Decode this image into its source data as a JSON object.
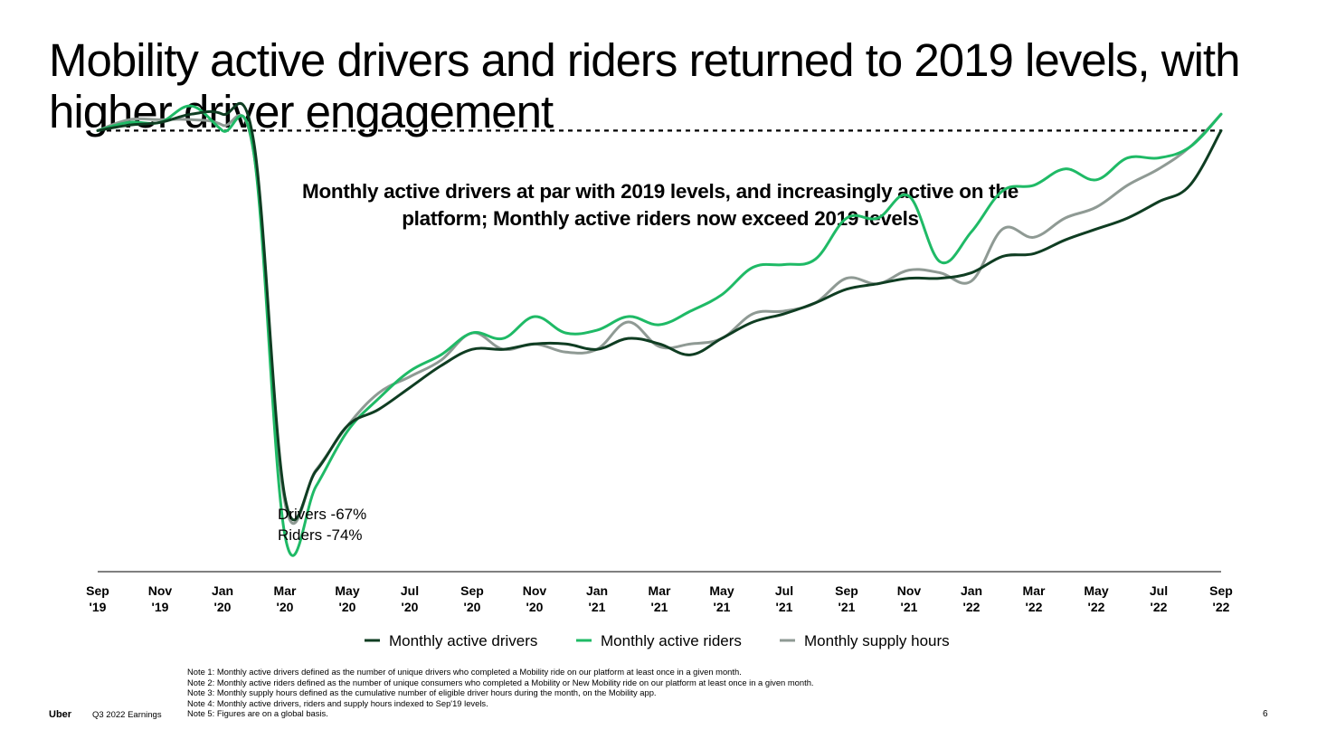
{
  "slide": {
    "title": "Mobility active drivers and riders returned to 2019 levels, with higher driver engagement",
    "subtitle_line1": "Monthly active drivers at par with 2019 levels, and increasingly active on the",
    "subtitle_line2": "platform; Monthly active riders now exceed 2019 levels",
    "brand": "Uber",
    "footer_label": "Q3 2022 Earnings",
    "page_number": "6"
  },
  "notes": [
    "Note 1: Monthly active drivers defined as the number of unique drivers who completed a Mobility ride on our platform at least once in a given month.",
    "Note 2: Monthly active riders defined as the number of unique consumers who completed a Mobility or New Mobility ride on our platform at least once in a given month.",
    "Note 3: Monthly supply hours defined as the cumulative number of eligible driver hours during the month, on the Mobility app.",
    "Note 4: Monthly active drivers, riders and supply hours indexed to Sep'19 levels.",
    "Note 5: Figures are on a global basis."
  ],
  "colors": {
    "drivers": "#0f3d22",
    "riders": "#1fba66",
    "supply": "#8f9a94",
    "baseline": "#000000",
    "axis": "#000000"
  },
  "chart_data": {
    "type": "line",
    "x": [
      "Sep '19",
      "Oct '19",
      "Nov '19",
      "Dec '19",
      "Jan '20",
      "Feb '20",
      "Mar '20",
      "Apr '20",
      "May '20",
      "Jun '20",
      "Jul '20",
      "Aug '20",
      "Sep '20",
      "Oct '20",
      "Nov '20",
      "Dec '20",
      "Jan '21",
      "Feb '21",
      "Mar '21",
      "Apr '21",
      "May '21",
      "Jun '21",
      "Jul '21",
      "Aug '21",
      "Sep '21",
      "Oct '21",
      "Nov '21",
      "Dec '21",
      "Jan '22",
      "Feb '22",
      "Mar '22",
      "Apr '22",
      "May '22",
      "Jun '22",
      "Jul '22",
      "Aug '22",
      "Sep '22"
    ],
    "x_tick_labels": [
      {
        "month": "Sep",
        "year": "'19"
      },
      {
        "month": "Nov",
        "year": "'19"
      },
      {
        "month": "Jan",
        "year": "'20"
      },
      {
        "month": "Mar",
        "year": "'20"
      },
      {
        "month": "May",
        "year": "'20"
      },
      {
        "month": "Jul",
        "year": "'20"
      },
      {
        "month": "Sep",
        "year": "'20"
      },
      {
        "month": "Nov",
        "year": "'20"
      },
      {
        "month": "Jan",
        "year": "'21"
      },
      {
        "month": "Mar",
        "year": "'21"
      },
      {
        "month": "May",
        "year": "'21"
      },
      {
        "month": "Jul",
        "year": "'21"
      },
      {
        "month": "Sep",
        "year": "'21"
      },
      {
        "month": "Nov",
        "year": "'21"
      },
      {
        "month": "Jan",
        "year": "'22"
      },
      {
        "month": "Mar",
        "year": "'22"
      },
      {
        "month": "May",
        "year": "'22"
      },
      {
        "month": "Jul",
        "year": "'22"
      },
      {
        "month": "Sep",
        "year": "'22"
      }
    ],
    "baseline": 100,
    "ylim": [
      22,
      108
    ],
    "grid": false,
    "legend_position": "bottom",
    "series": [
      {
        "name": "Monthly active drivers",
        "color_key": "drivers",
        "values": [
          100,
          101,
          101.5,
          103,
          103,
          98,
          33,
          37.8,
          46,
          49,
          53,
          57,
          60,
          60,
          61,
          61,
          60,
          62,
          61,
          59,
          62,
          65,
          66.5,
          68.5,
          71,
          72,
          73,
          73,
          74,
          77,
          77.5,
          80,
          82,
          84,
          87,
          90,
          100
        ]
      },
      {
        "name": "Monthly active riders",
        "color_key": "riders",
        "values": [
          100,
          101.5,
          101.5,
          104.5,
          100,
          96,
          26,
          35,
          45,
          51,
          56,
          59,
          63,
          62,
          66,
          63,
          63.5,
          66,
          64.5,
          67,
          70,
          75,
          75.5,
          76.5,
          84,
          84,
          88,
          76,
          81.5,
          89,
          90,
          93,
          91,
          95,
          95,
          97,
          103
        ]
      },
      {
        "name": "Monthly supply hours",
        "color_key": "supply",
        "values": [
          100,
          102,
          102,
          102,
          101,
          96,
          32,
          38,
          46,
          52,
          55,
          58,
          63,
          60,
          61,
          59.5,
          60,
          65,
          60.5,
          61,
          62,
          66.5,
          67,
          68.5,
          73,
          72,
          74.5,
          74,
          72.5,
          82,
          80.5,
          84,
          86,
          90,
          93,
          97,
          103
        ]
      }
    ],
    "annotations": [
      "Drivers -67%",
      "Riders -74%"
    ]
  }
}
